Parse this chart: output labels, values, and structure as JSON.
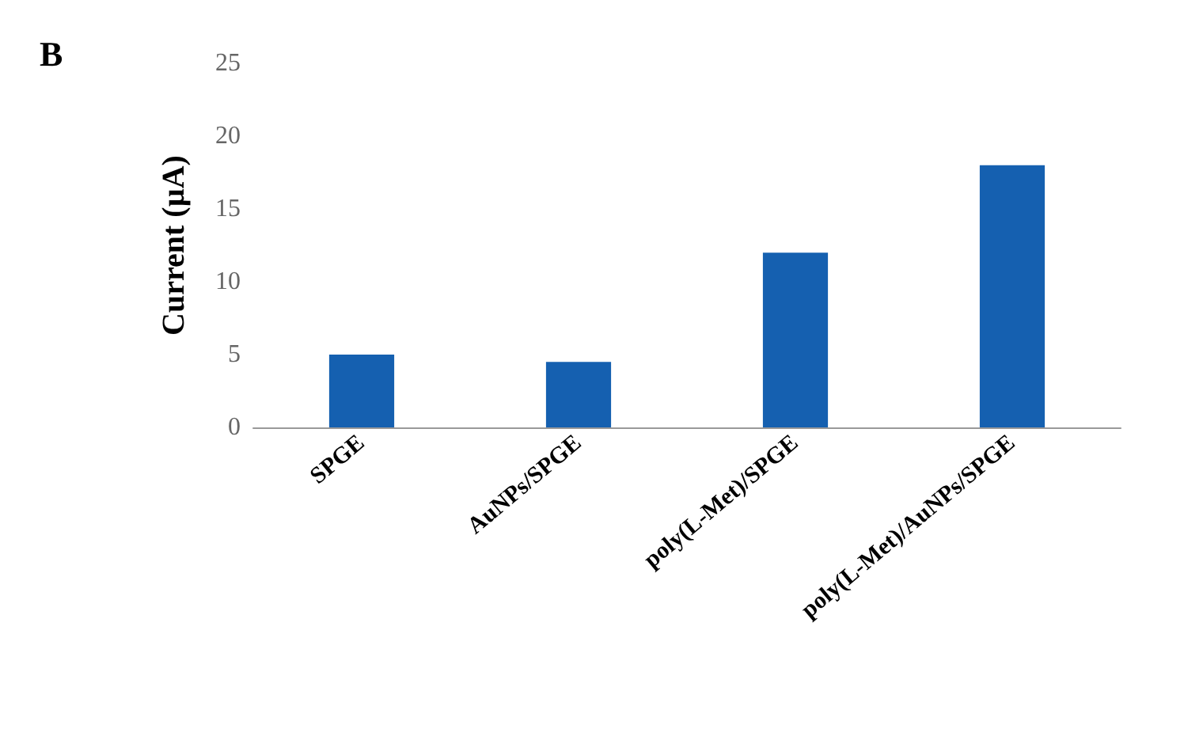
{
  "chart_data": {
    "type": "bar",
    "title": "B",
    "ylabel": "Current (µA)",
    "categories": [
      "SPGE",
      "AuNPs/SPGE",
      "poly(L-Met)/SPGE",
      "poly(L-Met)/AuNPs/SPGE"
    ],
    "values": [
      5,
      4.5,
      12,
      18
    ],
    "color": "#1560b0",
    "ylim": [
      0,
      25
    ],
    "yticks": [
      0,
      5,
      10,
      15,
      20,
      25
    ],
    "grid": false
  }
}
